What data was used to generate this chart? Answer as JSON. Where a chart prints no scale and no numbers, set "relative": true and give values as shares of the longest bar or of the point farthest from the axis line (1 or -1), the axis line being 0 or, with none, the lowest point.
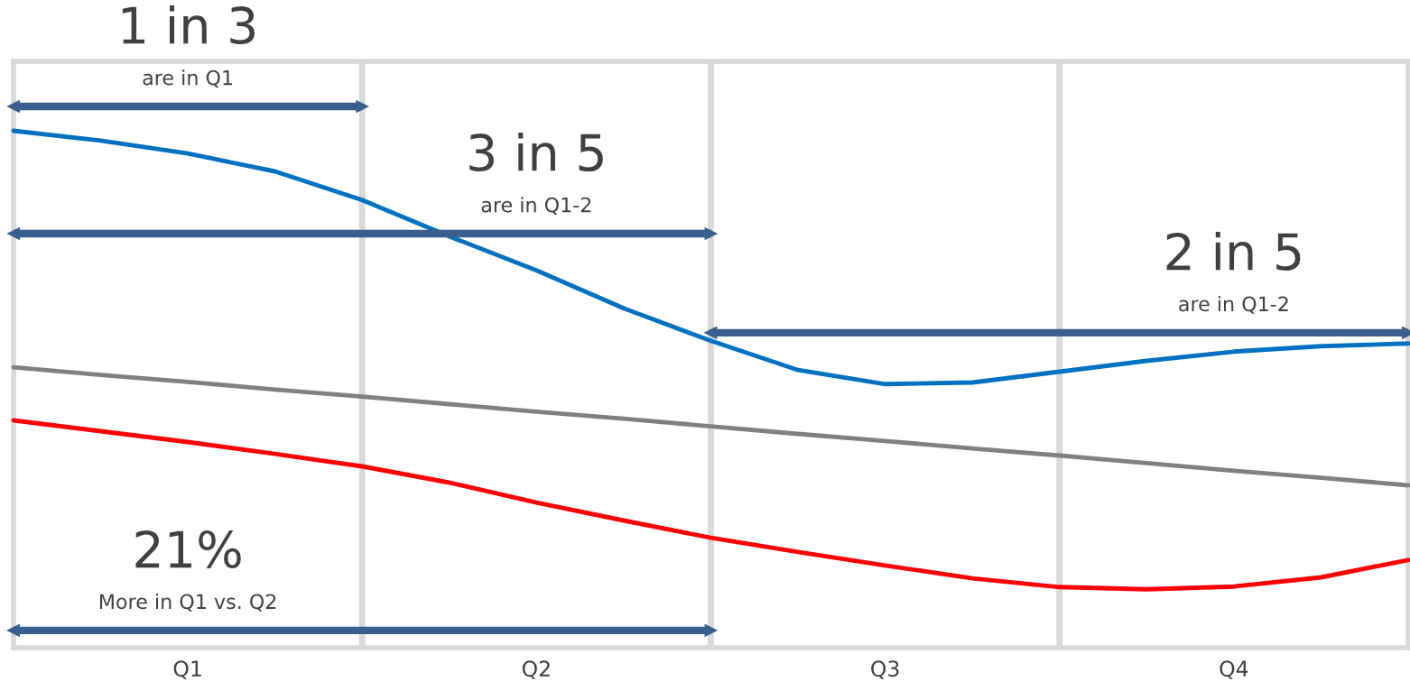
{
  "chart_data": {
    "type": "line",
    "relative": true,
    "grid": "x",
    "categories": [
      null,
      null,
      "Q1",
      null,
      null,
      null,
      "Q2",
      null,
      null,
      null,
      "Q3",
      null,
      null,
      null,
      "Q4",
      null,
      null
    ],
    "series": [
      {
        "color": "#0070c0",
        "values": [
          0.955,
          0.937,
          0.913,
          0.88,
          0.827,
          0.76,
          0.697,
          0.627,
          0.567,
          0.513,
          0.487,
          0.49,
          0.51,
          0.53,
          0.547,
          0.557,
          0.562
        ]
      },
      {
        "color": "#808080",
        "values": [
          0.518,
          0.504,
          0.491,
          0.477,
          0.464,
          0.45,
          0.436,
          0.423,
          0.409,
          0.395,
          0.382,
          0.368,
          0.355,
          0.341,
          0.327,
          0.314,
          0.3
        ]
      },
      {
        "color": "#ff0000",
        "values": [
          0.42,
          0.4,
          0.38,
          0.358,
          0.335,
          0.305,
          0.268,
          0.235,
          0.203,
          0.177,
          0.152,
          0.128,
          0.112,
          0.108,
          0.113,
          0.13,
          0.162
        ]
      },
      {
        "color": "#3a5f8f",
        "values": [
          1.0,
          1.0,
          1.0,
          1.0,
          1.0,
          null,
          null,
          null,
          null,
          null,
          null,
          null,
          null,
          null,
          null,
          null,
          null
        ]
      },
      {
        "color": "#3a5f8f",
        "values": [
          0.765,
          0.765,
          0.765,
          0.765,
          0.765,
          0.765,
          0.765,
          0.765,
          0.765,
          null,
          null,
          null,
          null,
          null,
          null,
          null,
          null
        ]
      },
      {
        "color": "#3a5f8f",
        "values": [
          null,
          null,
          null,
          null,
          null,
          null,
          null,
          null,
          0.582,
          0.582,
          0.582,
          0.582,
          0.582,
          0.582,
          0.582,
          0.582,
          0.582
        ]
      },
      {
        "color": "#3a5f8f",
        "values": [
          0.032,
          0.032,
          0.032,
          0.032,
          0.032,
          0.032,
          0.032,
          0.032,
          0.032,
          null,
          null,
          null,
          null,
          null,
          null,
          null,
          null
        ]
      }
    ],
    "annotations": [
      "1 in 3",
      "are in Q1",
      "3 in 5",
      "are in Q1-2",
      "2 in 5",
      "are in Q1-2",
      "21%",
      "More in Q1 vs. Q2"
    ]
  }
}
